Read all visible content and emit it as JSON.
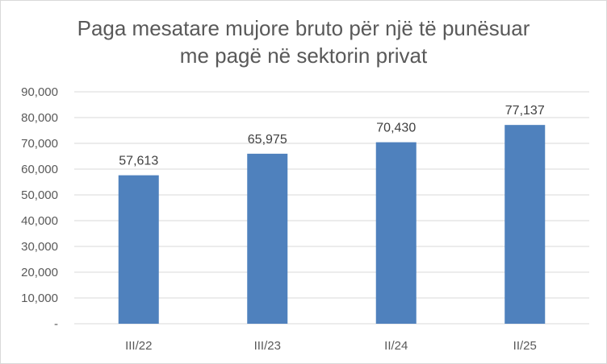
{
  "chart_data": {
    "type": "bar",
    "title_line1": "Paga mesatare mujore bruto për një të punësuar",
    "title_line2": "me pagë në sektorin privat",
    "categories": [
      "III/22",
      "III/23",
      "II/24",
      "II/25"
    ],
    "values": [
      57613,
      65975,
      70430,
      77137
    ],
    "value_labels": [
      "57,613",
      "65,975",
      "70,430",
      "77,137"
    ],
    "ylim": [
      0,
      90000
    ],
    "y_ticks": [
      0,
      10000,
      20000,
      30000,
      40000,
      50000,
      60000,
      70000,
      80000,
      90000
    ],
    "y_tick_labels": [
      "-",
      "10,000",
      "20,000",
      "30,000",
      "40,000",
      "50,000",
      "60,000",
      "70,000",
      "80,000",
      "90,000"
    ],
    "grid": true,
    "legend": "none",
    "bar_color": "#4f81bd"
  }
}
